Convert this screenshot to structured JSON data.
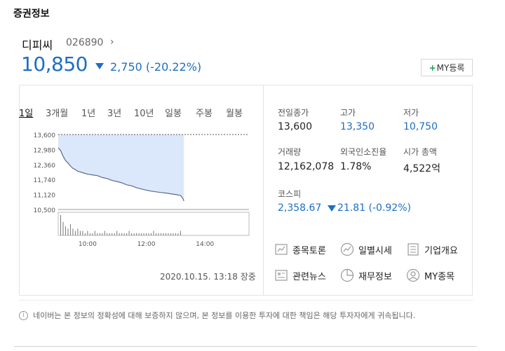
{
  "section": {
    "title": "증권정보"
  },
  "stock": {
    "name": "디피씨",
    "code": "026890",
    "chevron": "›",
    "price": "10,850",
    "change": "2,750 (-20.22%)",
    "my_button": "MY등록",
    "my_button_plus": "+"
  },
  "tabs": [
    "1일",
    "3개월",
    "1년",
    "3년",
    "10년",
    "일봉",
    "주봉",
    "월봉"
  ],
  "chart_data": {
    "type": "area",
    "y_ticks": [
      "13,600",
      "12,980",
      "12,360",
      "11,740",
      "11,120",
      "10,500"
    ],
    "x_ticks": [
      "10:00",
      "12:00",
      "14:00"
    ],
    "reference_line": 13600,
    "ylim": [
      10500,
      13600
    ],
    "x_range_minutes": [
      540,
      930
    ],
    "series": [
      {
        "values": [
          [
            540,
            13050
          ],
          [
            545,
            12930
          ],
          [
            550,
            12700
          ],
          [
            555,
            12520
          ],
          [
            560,
            12420
          ],
          [
            565,
            12300
          ],
          [
            570,
            12200
          ],
          [
            575,
            12150
          ],
          [
            580,
            12080
          ],
          [
            590,
            12020
          ],
          [
            600,
            11960
          ],
          [
            610,
            11930
          ],
          [
            620,
            11900
          ],
          [
            630,
            11820
          ],
          [
            640,
            11780
          ],
          [
            650,
            11700
          ],
          [
            660,
            11660
          ],
          [
            670,
            11600
          ],
          [
            680,
            11520
          ],
          [
            690,
            11480
          ],
          [
            700,
            11400
          ],
          [
            710,
            11350
          ],
          [
            720,
            11300
          ],
          [
            730,
            11260
          ],
          [
            740,
            11230
          ],
          [
            750,
            11200
          ],
          [
            760,
            11180
          ],
          [
            770,
            11150
          ],
          [
            780,
            11120
          ],
          [
            790,
            11080
          ],
          [
            795,
            10950
          ],
          [
            797,
            10850
          ]
        ]
      }
    ],
    "volume": [
      9,
      6,
      4,
      3,
      5,
      3,
      2,
      3,
      2,
      2,
      1,
      2,
      1,
      1,
      2,
      1,
      1,
      1,
      2,
      1,
      1,
      1,
      1,
      2,
      1,
      1,
      1,
      1,
      2,
      1,
      1,
      1,
      1,
      1,
      1,
      1,
      1,
      1,
      2,
      1,
      1,
      1,
      1,
      1,
      1,
      1,
      1,
      1,
      1,
      2
    ]
  },
  "timestamp": "2020.10.15. 13:18 장중",
  "stats": [
    {
      "label": "전일종가",
      "value": "13,600",
      "blue": false
    },
    {
      "label": "고가",
      "value": "13,350",
      "blue": true
    },
    {
      "label": "저가",
      "value": "10,750",
      "blue": true
    },
    {
      "label": "거래량",
      "value": "12,162,078",
      "blue": false
    },
    {
      "label": "외국인소진율",
      "value": "1.78%",
      "blue": false
    },
    {
      "label": "시가 총액",
      "value": "4,522억",
      "blue": false
    }
  ],
  "index": {
    "label": "코스피",
    "value": "2,358.67",
    "change": "21.81 (-0.92%)"
  },
  "links": [
    {
      "label": "종목토론",
      "icon": "chart-board-icon"
    },
    {
      "label": "일별시세",
      "icon": "trend-icon"
    },
    {
      "label": "기업개요",
      "icon": "document-icon"
    },
    {
      "label": "관련뉴스",
      "icon": "news-icon"
    },
    {
      "label": "재무정보",
      "icon": "pie-icon"
    },
    {
      "label": "MY종목",
      "icon": "user-icon"
    }
  ],
  "disclaimer": "네이버는 본 정보의 정확성에 대해 보증하지 않으며, 본 정보를 이용한 투자에 대한 책임은 해당 투자자에게 귀속됩니다.",
  "colors": {
    "blue": "#1d6fc2",
    "area_fill": "#dbe8fb",
    "plus_green": "#18a04a"
  }
}
